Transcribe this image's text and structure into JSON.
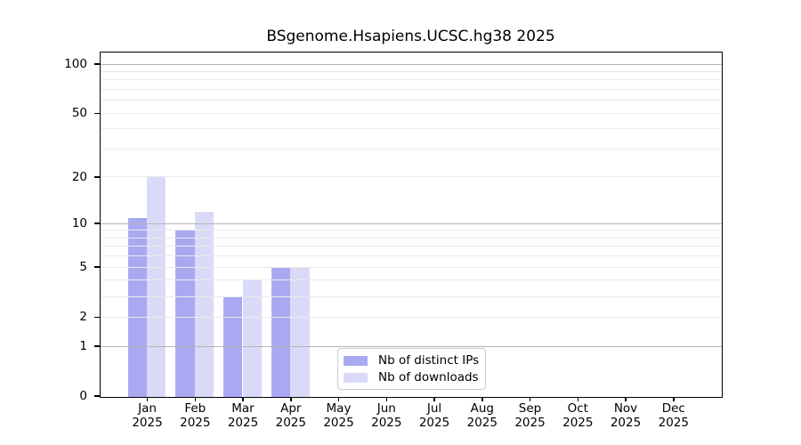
{
  "chart_data": {
    "type": "bar",
    "title": "BSgenome.Hsapiens.UCSC.hg38 2025",
    "categories": [
      "Jan 2025",
      "Feb 2025",
      "Mar 2025",
      "Apr 2025",
      "May 2025",
      "Jun 2025",
      "Jul 2025",
      "Aug 2025",
      "Sep 2025",
      "Oct 2025",
      "Nov 2025",
      "Dec 2025"
    ],
    "series": [
      {
        "name": "Nb of distinct IPs",
        "color": "#a9a9f2",
        "values": [
          11,
          9,
          3,
          5,
          0,
          0,
          0,
          0,
          0,
          0,
          0,
          0
        ]
      },
      {
        "name": "Nb of downloads",
        "color": "#dadaf8",
        "values": [
          20,
          12,
          4,
          5,
          0,
          0,
          0,
          0,
          0,
          0,
          0,
          0
        ]
      }
    ],
    "xlabel": "",
    "ylabel": "",
    "y_scale": "log1p",
    "ylim": [
      0,
      117
    ],
    "y_ticks": [
      0,
      1,
      2,
      5,
      10,
      20,
      50,
      100
    ],
    "gridlines": {
      "major": [
        1,
        10,
        100
      ],
      "minor": [
        2,
        3,
        4,
        5,
        6,
        7,
        8,
        9,
        20,
        30,
        40,
        50,
        60,
        70,
        80,
        90
      ]
    },
    "grid_on": true,
    "legend_position": "bottom-center",
    "colors": {
      "major_grid": "#b4b4b4",
      "minor_grid": "#eaeaea",
      "axis": "#000000",
      "background": "#ffffff"
    }
  }
}
